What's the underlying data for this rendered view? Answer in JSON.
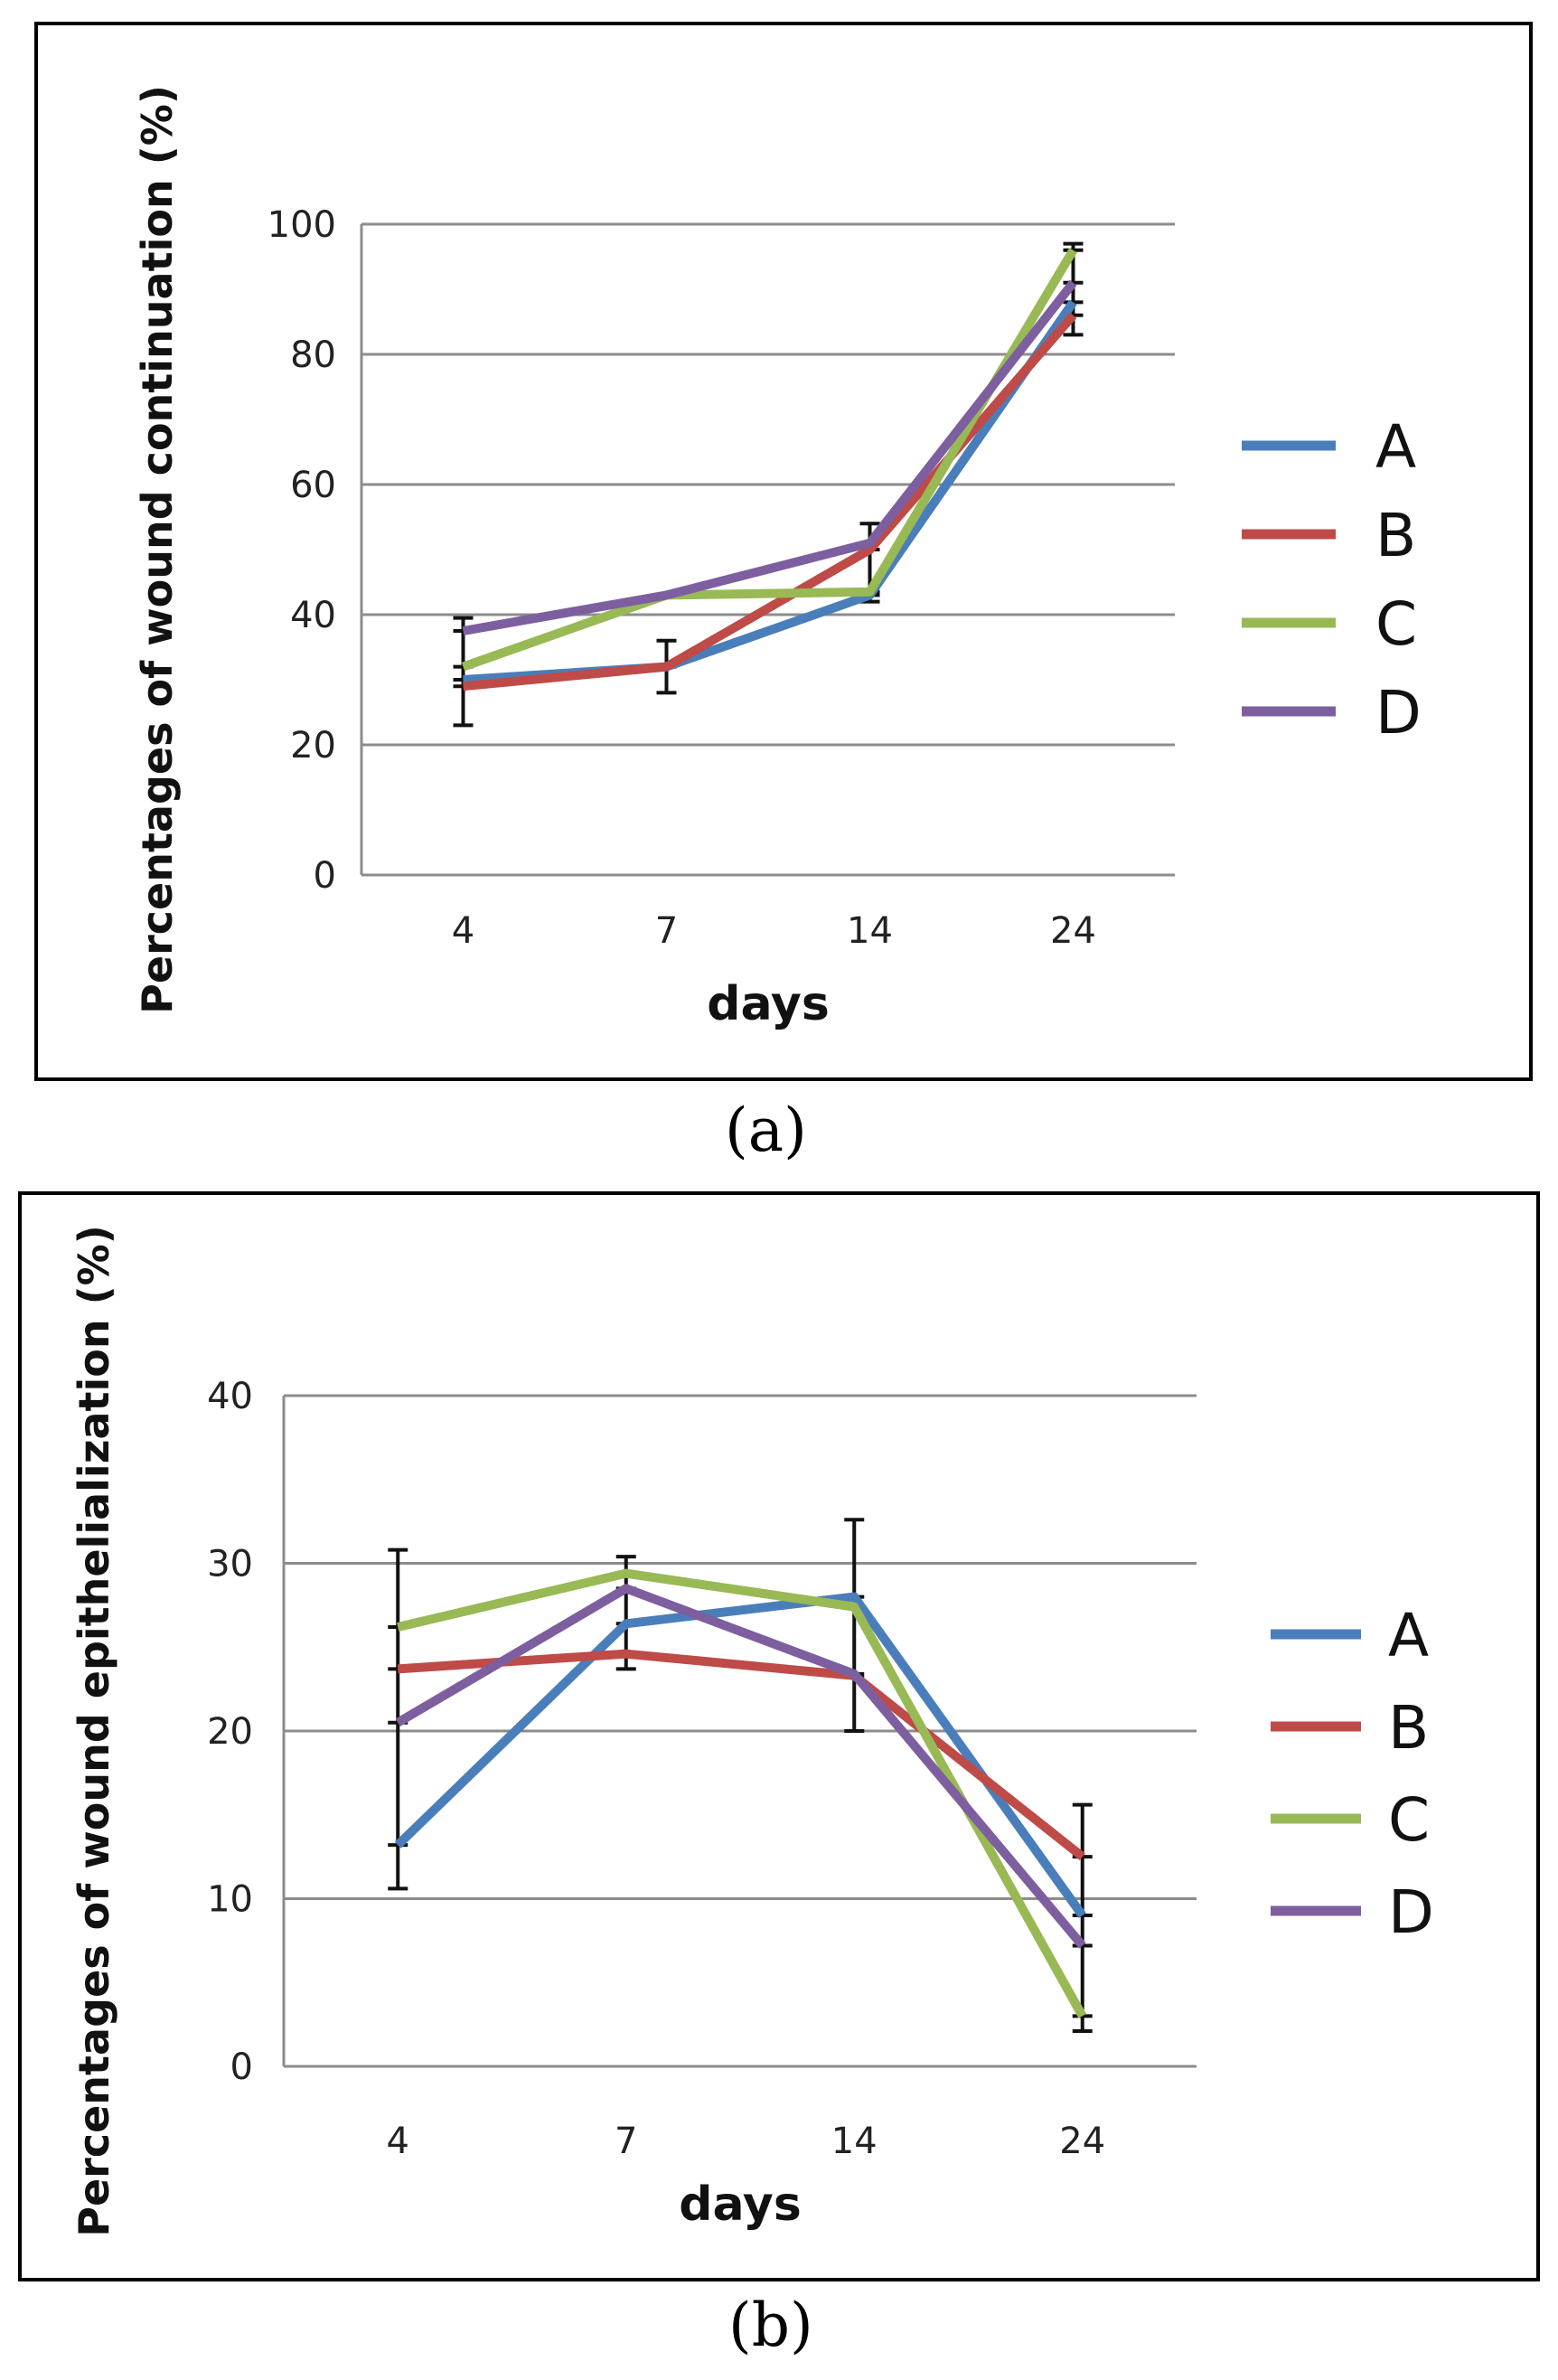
{
  "chart_data": [
    {
      "type": "line",
      "panel_label": "(a)",
      "title": "",
      "xlabel": "days",
      "ylabel": "Percentages of wound continuation (%)",
      "categories": [
        "4",
        "7",
        "14",
        "24"
      ],
      "ylim": [
        0,
        100
      ],
      "yticks": [
        0,
        20,
        40,
        60,
        80,
        100
      ],
      "grid": true,
      "legend_position": "right",
      "series": [
        {
          "name": "A",
          "color": "#4a7ebb",
          "values": [
            30,
            32,
            43,
            88
          ]
        },
        {
          "name": "B",
          "color": "#be4b48",
          "values": [
            29,
            32,
            50,
            86
          ]
        },
        {
          "name": "C",
          "color": "#98b954",
          "values": [
            32,
            43,
            43.5,
            96
          ]
        },
        {
          "name": "D",
          "color": "#7d5fa0",
          "values": [
            37.5,
            43,
            51,
            91
          ]
        }
      ],
      "error_bars": [
        [
          23,
          39.5
        ],
        [
          28,
          36
        ],
        [
          42,
          54
        ],
        [
          83,
          97
        ]
      ]
    },
    {
      "type": "line",
      "panel_label": "(b)",
      "title": "",
      "xlabel": "days",
      "ylabel": "Percentages of wound epithelialization (%)",
      "categories": [
        "4",
        "7",
        "14",
        "24"
      ],
      "ylim": [
        0,
        40
      ],
      "yticks": [
        0,
        10,
        20,
        30,
        40
      ],
      "grid": true,
      "legend_position": "right",
      "series": [
        {
          "name": "A",
          "color": "#4a7ebb",
          "values": [
            13.2,
            26.4,
            28,
            9
          ]
        },
        {
          "name": "B",
          "color": "#be4b48",
          "values": [
            23.7,
            24.6,
            23.3,
            12.5
          ]
        },
        {
          "name": "C",
          "color": "#98b954",
          "values": [
            26.2,
            29.4,
            27.4,
            3
          ]
        },
        {
          "name": "D",
          "color": "#7d5fa0",
          "values": [
            20.5,
            28.5,
            23.4,
            7.2
          ]
        }
      ],
      "error_bars": [
        [
          10.6,
          30.8
        ],
        [
          23.7,
          30.4
        ],
        [
          20,
          32.6
        ],
        [
          2.1,
          15.6
        ]
      ]
    }
  ]
}
